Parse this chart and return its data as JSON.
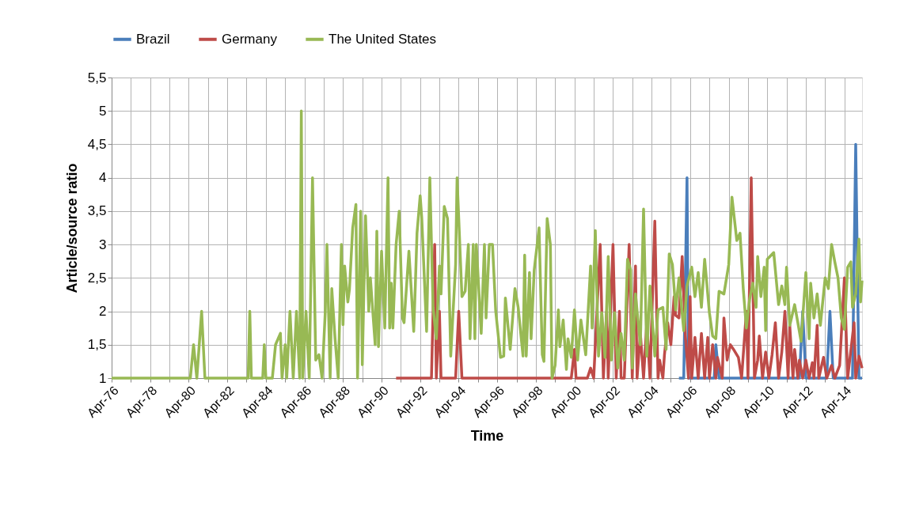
{
  "chart_data": {
    "type": "line",
    "xlabel": "Time",
    "ylabel": "Article/source ratio",
    "xlim": [
      "1976-04",
      "2015-03"
    ],
    "xticks": [
      {
        "value": "1976-04",
        "label": "Apr-76"
      },
      {
        "value": "1977-04",
        "label": null
      },
      {
        "value": "1978-04",
        "label": "Apr-78"
      },
      {
        "value": "1979-04",
        "label": null
      },
      {
        "value": "1980-04",
        "label": "Apr-80"
      },
      {
        "value": "1981-04",
        "label": null
      },
      {
        "value": "1982-04",
        "label": "Apr-82"
      },
      {
        "value": "1983-04",
        "label": null
      },
      {
        "value": "1984-04",
        "label": "Apr-84"
      },
      {
        "value": "1985-04",
        "label": null
      },
      {
        "value": "1986-04",
        "label": "Apr-86"
      },
      {
        "value": "1987-04",
        "label": null
      },
      {
        "value": "1988-04",
        "label": "Apr-88"
      },
      {
        "value": "1989-04",
        "label": null
      },
      {
        "value": "1990-04",
        "label": "Apr-90"
      },
      {
        "value": "1991-04",
        "label": null
      },
      {
        "value": "1992-04",
        "label": "Apr-92"
      },
      {
        "value": "1993-04",
        "label": null
      },
      {
        "value": "1994-04",
        "label": "Apr-94"
      },
      {
        "value": "1995-04",
        "label": null
      },
      {
        "value": "1996-04",
        "label": "Apr-96"
      },
      {
        "value": "1997-04",
        "label": null
      },
      {
        "value": "1998-04",
        "label": "Apr-98"
      },
      {
        "value": "1999-04",
        "label": null
      },
      {
        "value": "2000-04",
        "label": "Apr-00"
      },
      {
        "value": "2001-04",
        "label": null
      },
      {
        "value": "2002-04",
        "label": "Apr-02"
      },
      {
        "value": "2003-04",
        "label": null
      },
      {
        "value": "2004-04",
        "label": "Apr-04"
      },
      {
        "value": "2005-04",
        "label": null
      },
      {
        "value": "2006-04",
        "label": "Apr-06"
      },
      {
        "value": "2007-04",
        "label": null
      },
      {
        "value": "2008-04",
        "label": "Apr-08"
      },
      {
        "value": "2009-04",
        "label": null
      },
      {
        "value": "2010-04",
        "label": "Apr-10"
      },
      {
        "value": "2011-04",
        "label": null
      },
      {
        "value": "2012-04",
        "label": "Apr-12"
      },
      {
        "value": "2013-04",
        "label": null
      },
      {
        "value": "2014-04",
        "label": "Apr-14"
      }
    ],
    "ylim": [
      1,
      5.5
    ],
    "yticks": [
      1,
      {
        "value": 1.5,
        "label": "1,5"
      },
      2,
      {
        "value": 2.5,
        "label": "2,5"
      },
      3,
      {
        "value": 3.5,
        "label": "3,5"
      },
      4,
      {
        "value": 4.5,
        "label": "4,5"
      },
      5,
      {
        "value": 5.5,
        "label": "5,5"
      }
    ],
    "grid": true,
    "legend": "top",
    "marker": "none",
    "line_style": "solid",
    "series": [
      {
        "name": "Brazil",
        "color": "#4a7ebb",
        "x": [
          "2005-09",
          "2005-12",
          "2006-02",
          "2006-03",
          "2006-08",
          "2007-01",
          "2007-07",
          "2007-08",
          "2007-10",
          "2008-09",
          "2009-06",
          "2010-07",
          "2011-07",
          "2011-12",
          "2012-02",
          "2012-04",
          "2012-10",
          "2013-05",
          "2013-07",
          "2013-09",
          "2014-03",
          "2014-09",
          "2014-11",
          "2015-01",
          "2015-03"
        ],
        "values": [
          1,
          1,
          4,
          1,
          1,
          1,
          1,
          1.5,
          1,
          1,
          1,
          1,
          1,
          1,
          2,
          1,
          1,
          1,
          2,
          1,
          1,
          1,
          4.5,
          1,
          1
        ]
      },
      {
        "name": "Germany",
        "color": "#be4b48",
        "x": [
          "1991-01",
          "1991-02",
          "1991-04",
          "1992-05",
          "1992-06",
          "1992-08",
          "1992-11",
          "1993-01",
          "1993-02",
          "1993-04",
          "1993-05",
          "1993-07",
          "1993-10",
          "1994-02",
          "1994-04",
          "1994-06",
          "1994-09",
          "1995-05",
          "1995-06",
          "1995-09",
          "1996-02",
          "1996-08",
          "1996-09",
          "1996-11",
          "1997-05",
          "1997-07",
          "1997-09",
          "1998-03",
          "1998-04",
          "1998-06",
          "1998-11",
          "1999-02",
          "1999-07",
          "2000-02",
          "2000-04",
          "2000-05",
          "2000-12",
          "2001-02",
          "2001-04",
          "2001-08",
          "2001-10",
          "2001-12",
          "2002-01",
          "2002-04",
          "2002-06",
          "2002-08",
          "2002-09",
          "2002-11",
          "2003-02",
          "2003-04",
          "2003-06",
          "2003-07",
          "2003-09",
          "2003-11",
          "2004-01",
          "2004-03",
          "2004-06",
          "2004-08",
          "2004-09",
          "2004-11",
          "2004-12",
          "2005-02",
          "2005-04",
          "2005-06",
          "2005-07",
          "2005-09",
          "2005-11",
          "2006-01",
          "2006-03",
          "2006-04",
          "2006-05",
          "2006-07",
          "2006-09",
          "2006-11",
          "2007-01",
          "2007-03",
          "2007-04",
          "2007-06",
          "2007-08",
          "2007-09",
          "2007-12",
          "2008-01",
          "2008-03",
          "2008-05",
          "2008-07",
          "2008-10",
          "2008-12",
          "2009-03",
          "2009-04",
          "2009-06",
          "2009-08",
          "2009-10",
          "2009-11",
          "2010-01",
          "2010-03",
          "2010-05",
          "2010-07",
          "2010-09",
          "2010-11",
          "2011-01",
          "2011-03",
          "2011-05",
          "2011-06",
          "2011-08",
          "2011-09",
          "2011-11",
          "2011-12",
          "2012-02",
          "2012-04",
          "2012-06",
          "2012-08",
          "2012-09",
          "2012-11",
          "2012-12",
          "2013-03",
          "2013-05",
          "2013-08",
          "2013-10",
          "2014-01",
          "2014-04",
          "2014-06",
          "2014-10",
          "2014-11",
          "2015-01",
          "2015-03"
        ],
        "values": [
          1,
          1,
          1,
          1,
          1,
          1,
          1,
          3,
          1,
          2,
          1,
          1,
          1,
          1,
          2,
          1,
          1,
          1,
          1,
          1,
          1,
          1,
          1,
          1,
          1,
          1,
          1,
          1,
          1,
          1,
          1,
          1,
          1,
          1,
          1.43,
          1,
          1,
          1.15,
          1,
          3,
          1,
          2,
          1,
          3,
          1,
          2,
          1,
          1,
          3,
          1,
          2.68,
          1,
          1.67,
          1,
          1.83,
          1,
          3.35,
          1,
          1.27,
          1,
          1.35,
          1.83,
          1.5,
          2.22,
          1.94,
          1.9,
          2.82,
          1.63,
          1,
          2.22,
          1,
          1.61,
          1,
          1.67,
          1,
          1.61,
          1,
          1.5,
          1,
          1.31,
          1,
          1.9,
          1.27,
          1.5,
          1.43,
          1.31,
          1,
          2,
          1,
          4,
          1,
          1.27,
          1.63,
          1,
          1.39,
          1,
          1.35,
          1.83,
          1,
          1.39,
          2,
          1,
          1.79,
          1,
          1.43,
          1,
          1.27,
          1,
          1.27,
          1,
          1.23,
          1,
          1.79,
          1,
          1.31,
          1,
          1.19,
          1,
          1.19,
          2.5,
          1,
          1.83,
          1,
          1.33,
          1.15
        ]
      },
      {
        "name": "The United States",
        "color": "#98b954",
        "x": [
          "1976-04",
          "1976-06",
          "1977-10",
          "1977-12",
          "1979-06",
          "1980-01",
          "1980-05",
          "1980-07",
          "1980-09",
          "1980-12",
          "1981-02",
          "1981-06",
          "1981-09",
          "1981-11",
          "1982-04",
          "1982-10",
          "1983-01",
          "1983-05",
          "1983-06",
          "1983-07",
          "1983-11",
          "1984-01",
          "1984-02",
          "1984-03",
          "1984-04",
          "1984-06",
          "1984-08",
          "1984-10",
          "1985-01",
          "1985-02",
          "1985-04",
          "1985-05",
          "1985-07",
          "1985-09",
          "1985-11",
          "1986-01",
          "1986-02",
          "1986-03",
          "1986-05",
          "1986-07",
          "1986-09",
          "1986-11",
          "1987-01",
          "1987-03",
          "1987-05",
          "1987-06",
          "1987-08",
          "1987-09",
          "1987-11",
          "1988-01",
          "1988-03",
          "1988-04",
          "1988-05",
          "1988-07",
          "1988-08",
          "1988-10",
          "1988-12",
          "1989-01",
          "1989-03",
          "1989-04",
          "1989-06",
          "1989-08",
          "1989-09",
          "1989-12",
          "1990-01",
          "1990-02",
          "1990-04",
          "1990-06",
          "1990-08",
          "1990-09",
          "1990-10",
          "1990-11",
          "1991-01",
          "1991-03",
          "1991-05",
          "1991-06",
          "1991-09",
          "1991-12",
          "1992-01",
          "1992-02",
          "1992-04",
          "1992-05",
          "1992-08",
          "1992-10",
          "1992-12",
          "1993-02",
          "1993-04",
          "1993-05",
          "1993-07",
          "1993-09",
          "1993-11",
          "1994-02",
          "1994-03",
          "1994-06",
          "1994-08",
          "1994-10",
          "1994-11",
          "1995-01",
          "1995-02",
          "1995-03",
          "1995-06",
          "1995-08",
          "1995-09",
          "1995-11",
          "1996-01",
          "1996-03",
          "1996-06",
          "1996-08",
          "1996-09",
          "1996-12",
          "1997-03",
          "1997-05",
          "1997-08",
          "1997-09",
          "1997-10",
          "1997-12",
          "1998-01",
          "1998-03",
          "1998-06",
          "1998-08",
          "1998-09",
          "1998-11",
          "1999-01",
          "1999-02",
          "1999-04",
          "1999-06",
          "1999-07",
          "1999-09",
          "1999-11",
          "1999-12",
          "2000-02",
          "2000-04",
          "2000-06",
          "2000-08",
          "2000-11",
          "2001-02",
          "2001-03",
          "2001-05",
          "2001-07",
          "2001-09",
          "2001-11",
          "2002-01",
          "2002-03",
          "2002-05",
          "2002-07",
          "2002-09",
          "2002-11",
          "2003-01",
          "2003-03",
          "2003-04",
          "2003-06",
          "2003-09",
          "2003-11",
          "2004-01",
          "2004-03",
          "2004-06",
          "2004-08",
          "2004-11",
          "2005-01",
          "2005-03",
          "2005-05",
          "2005-07",
          "2005-09",
          "2005-12",
          "2006-02",
          "2006-05",
          "2006-07",
          "2006-09",
          "2006-11",
          "2007-01",
          "2007-04",
          "2007-06",
          "2007-08",
          "2007-10",
          "2008-01",
          "2008-04",
          "2008-06",
          "2008-09",
          "2008-11",
          "2009-01",
          "2009-03",
          "2009-05",
          "2009-07",
          "2009-09",
          "2009-10",
          "2009-12",
          "2010-02",
          "2010-03",
          "2010-04",
          "2010-08",
          "2010-11",
          "2011-01",
          "2011-03",
          "2011-04",
          "2011-06",
          "2011-09",
          "2011-11",
          "2012-01",
          "2012-04",
          "2012-06",
          "2012-07",
          "2012-09",
          "2012-11",
          "2013-01",
          "2013-04",
          "2013-06",
          "2013-08",
          "2013-10",
          "2013-12",
          "2014-02",
          "2014-04",
          "2014-06",
          "2014-08",
          "2014-09",
          "2014-11",
          "2015-01",
          "2015-02",
          "2015-03"
        ],
        "values": [
          1,
          1,
          1,
          1,
          1,
          1,
          1,
          1.5,
          1,
          2,
          1,
          1,
          1,
          1,
          1,
          1,
          1,
          1,
          2,
          1,
          1,
          1,
          1,
          1.5,
          1,
          1,
          1,
          1.5,
          1.67,
          1,
          1.5,
          1,
          2,
          1,
          2,
          1,
          5,
          1,
          2,
          1,
          4,
          1.27,
          1.35,
          1,
          2,
          3,
          1,
          2.34,
          1.6,
          1,
          3,
          1.8,
          2.68,
          2.14,
          2.33,
          3.25,
          3.6,
          1,
          3.5,
          1.2,
          3.43,
          2,
          2.5,
          1.5,
          3.2,
          1.47,
          2.9,
          1.75,
          4,
          1.75,
          2.42,
          1.75,
          3,
          3.5,
          1.9,
          1.83,
          2.9,
          1.7,
          2.4,
          3.17,
          3.73,
          3.4,
          1.7,
          4,
          2.06,
          1.59,
          2.68,
          2.26,
          3.57,
          3.39,
          1.33,
          2.7,
          4,
          2.22,
          2.3,
          3,
          1.59,
          3,
          1.59,
          3,
          1.67,
          3,
          1.9,
          3,
          3,
          2.01,
          1.31,
          1.33,
          2.2,
          1.43,
          2.34,
          2.06,
          1.33,
          2.84,
          1.33,
          2.58,
          1.59,
          2.62,
          3.25,
          1.35,
          1.25,
          3.39,
          3,
          1,
          1.19,
          2.02,
          1.47,
          1.87,
          1.13,
          1.59,
          1.31,
          2.02,
          1.27,
          1.87,
          1.35,
          2.68,
          1.75,
          3.21,
          1.33,
          1.98,
          1.31,
          2.82,
          1.27,
          1.98,
          1.15,
          1.67,
          1.27,
          2.78,
          2.62,
          1.15,
          2.26,
          1.5,
          3.53,
          1.33,
          2.38,
          1.33,
          2.02,
          2.06,
          1.43,
          2.86,
          2.7,
          2.02,
          2.5,
          1.71,
          2.38,
          2.66,
          2.22,
          2.58,
          2.06,
          2.78,
          1.98,
          1.63,
          1.59,
          2.3,
          2.26,
          2.7,
          3.71,
          3.06,
          3.17,
          2.34,
          1.75,
          2.18,
          2.42,
          2.06,
          2.82,
          2.22,
          2.66,
          1.71,
          2.78,
          2.88,
          2.1,
          2.38,
          2.1,
          2.66,
          1.79,
          2.1,
          1.83,
          1.55,
          2.58,
          1.59,
          2.42,
          1.9,
          2.26,
          1.79,
          2.5,
          2.34,
          3,
          2.74,
          2.5,
          1.9,
          1.73,
          2.66,
          2.74,
          2.06,
          2.26,
          3.08,
          2.14,
          2.46
        ]
      }
    ]
  }
}
